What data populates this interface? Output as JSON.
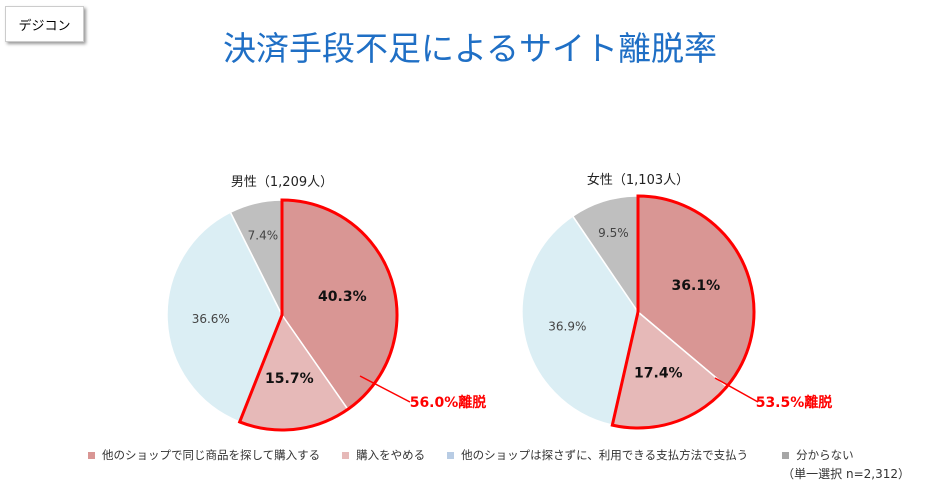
{
  "badge": "デジコン",
  "title": "決済手段不足によるサイト離脱率",
  "chart_data": [
    {
      "type": "pie",
      "title": "男性（1,209人）",
      "categories": [
        "他のショップで同じ商品を探して購入する",
        "購入をやめる",
        "他のショップは探さずに、利用できる支払方法で支払う",
        "分からない"
      ],
      "values": [
        40.3,
        15.7,
        36.6,
        7.4
      ],
      "labels": [
        "40.3%",
        "15.7%",
        "36.6%",
        "7.4%"
      ],
      "highlight_label": "56.0%離脱"
    },
    {
      "type": "pie",
      "title": "女性（1,103人）",
      "categories": [
        "他のショップで同じ商品を探して購入する",
        "購入をやめる",
        "他のショップは探さずに、利用できる支払方法で支払う",
        "分からない"
      ],
      "values": [
        36.1,
        17.4,
        36.9,
        9.5
      ],
      "labels": [
        "36.1%",
        "17.4%",
        "36.9%",
        "9.5%"
      ],
      "highlight_label": "53.5%離脱"
    }
  ],
  "colors": [
    "#d99694",
    "#e6b9b8",
    "#dbeef4",
    "#bfbfbf"
  ],
  "highlight_color": "#ff0000",
  "legend": [
    "他のショップで同じ商品を探して購入する",
    "購入をやめる",
    "他のショップは探さずに、利用できる支払方法で支払う",
    "分からない"
  ],
  "legend_colors": [
    "#d99694",
    "#e6b9b8",
    "#b8cce4",
    "#a6a6a6"
  ],
  "note": "（単一選択 n=2,312）"
}
